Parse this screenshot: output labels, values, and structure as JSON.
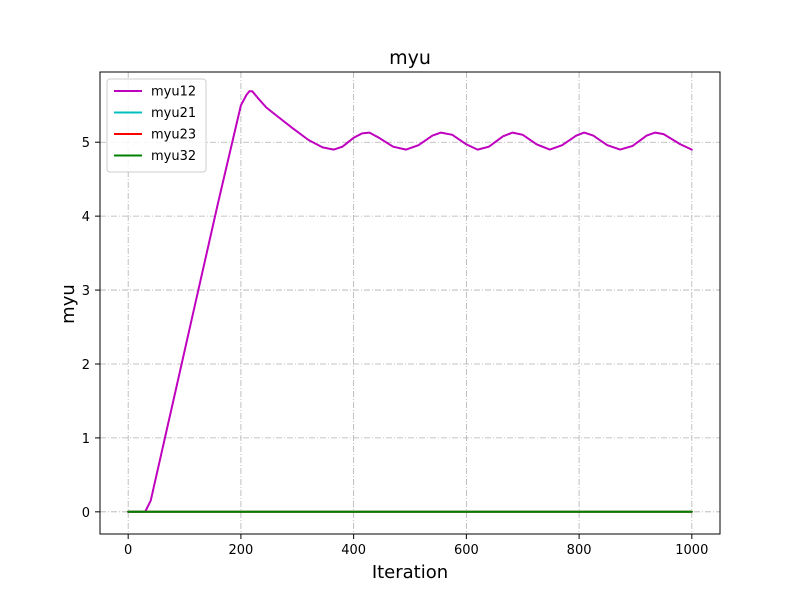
{
  "chart_data": {
    "type": "line",
    "title": "myu",
    "xlabel": "Iteration",
    "ylabel": "myu",
    "xlim": [
      -50,
      1050
    ],
    "ylim": [
      -0.3,
      5.95
    ],
    "xticks": [
      0,
      200,
      400,
      600,
      800,
      1000
    ],
    "yticks": [
      0,
      1,
      2,
      3,
      4,
      5
    ],
    "grid": true,
    "legend_position": "top-left",
    "series": [
      {
        "name": "myu12",
        "color": "#bf00bf",
        "x": [
          0,
          30,
          40,
          80,
          120,
          160,
          200,
          210,
          215,
          220,
          230,
          245,
          265,
          290,
          320,
          345,
          365,
          380,
          400,
          415,
          428,
          445,
          470,
          493,
          515,
          540,
          555,
          575,
          600,
          620,
          640,
          665,
          682,
          700,
          725,
          748,
          770,
          795,
          809,
          825,
          850,
          873,
          895,
          920,
          935,
          950,
          980,
          1000
        ],
        "values": [
          0,
          0,
          0.15,
          1.5,
          2.85,
          4.2,
          5.5,
          5.64,
          5.69,
          5.69,
          5.6,
          5.47,
          5.35,
          5.2,
          5.03,
          4.93,
          4.9,
          4.94,
          5.06,
          5.12,
          5.13,
          5.06,
          4.94,
          4.9,
          4.96,
          5.09,
          5.13,
          5.1,
          4.97,
          4.9,
          4.94,
          5.08,
          5.13,
          5.1,
          4.97,
          4.9,
          4.96,
          5.09,
          5.13,
          5.09,
          4.96,
          4.9,
          4.95,
          5.09,
          5.13,
          5.11,
          4.97,
          4.9
        ]
      },
      {
        "name": "myu21",
        "color": "#00bfbf",
        "x": [
          0,
          1000
        ],
        "values": [
          0,
          0
        ]
      },
      {
        "name": "myu23",
        "color": "#ff0000",
        "x": [
          0,
          1000
        ],
        "values": [
          0,
          0
        ]
      },
      {
        "name": "myu32",
        "color": "#008000",
        "x": [
          0,
          1000
        ],
        "values": [
          0,
          0
        ]
      }
    ]
  }
}
